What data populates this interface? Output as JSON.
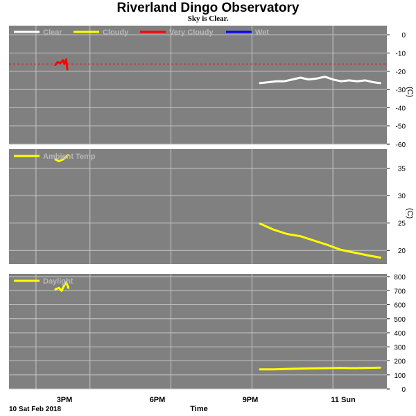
{
  "title": "Riverland Dingo Observatory",
  "subtitle": "Sky is Clear.",
  "date_label": "10 Sat Feb 2018",
  "x_axis_label": "Time",
  "x_ticks": [
    "3PM",
    "6PM",
    "9PM",
    "11 Sun"
  ],
  "colors": {
    "panel_bg": "#808080",
    "grid": "#c8c8c8",
    "clear": "#ffffff",
    "cloudy": "#ffff00",
    "very_cloudy": "#ff0000",
    "wet": "#0000ff",
    "threshold": "#ff0000"
  },
  "chart_data": [
    {
      "type": "line",
      "panel": "sky",
      "legend": [
        "Clear",
        "Cloudy",
        "Very Cloudy",
        "Wet"
      ],
      "unit": "(C)",
      "ylim": [
        -60,
        5
      ],
      "y_ticks": [
        "0",
        "-10",
        "-20",
        "-30",
        "-40",
        "-50",
        "-60"
      ],
      "threshold": -16,
      "series": [
        {
          "name": "Very Cloudy",
          "x": [
            13.72,
            13.8,
            13.9,
            14.0,
            14.05,
            14.12,
            14.16
          ],
          "y": [
            -16.5,
            -15.0,
            -15.5,
            -14.0,
            -16.0,
            -13.5,
            -19.0
          ]
        },
        {
          "name": "Clear",
          "x": [
            21.3,
            21.6,
            21.9,
            22.2,
            22.5,
            22.8,
            23.1,
            23.4,
            23.7,
            24.0,
            24.3,
            24.6,
            24.9,
            25.2,
            25.5,
            25.75
          ],
          "y": [
            -26.5,
            -26.0,
            -25.5,
            -25.5,
            -24.5,
            -23.5,
            -24.5,
            -24.0,
            -23.0,
            -24.5,
            -25.5,
            -25.0,
            -25.5,
            -25.0,
            -26.0,
            -26.5
          ]
        }
      ]
    },
    {
      "type": "line",
      "panel": "ambient",
      "legend": [
        "Ambient Temp"
      ],
      "unit": "(C)",
      "ylim": [
        17.5,
        38.5
      ],
      "y_ticks": [
        "35",
        "30",
        "25",
        "20"
      ],
      "series": [
        {
          "name": "Ambient Temp",
          "x": [
            13.72,
            13.85,
            14.0,
            14.1,
            14.18
          ],
          "y": [
            36.6,
            36.3,
            36.6,
            37.0,
            37.4
          ],
          "segment": 0
        },
        {
          "name": "Ambient Temp",
          "x": [
            21.3,
            21.8,
            22.3,
            22.8,
            23.3,
            23.8,
            24.3,
            24.8,
            25.3,
            25.75
          ],
          "y": [
            24.9,
            23.8,
            23.0,
            22.6,
            21.8,
            21.0,
            20.1,
            19.6,
            19.1,
            18.7
          ],
          "segment": 1
        }
      ]
    },
    {
      "type": "line",
      "panel": "daylight",
      "legend": [
        "Daylight"
      ],
      "unit": "",
      "ylim": [
        0,
        820
      ],
      "y_ticks": [
        "800",
        "700",
        "600",
        "500",
        "400",
        "300",
        "200",
        "100",
        "0"
      ],
      "series": [
        {
          "name": "Daylight",
          "x": [
            13.72,
            13.85,
            13.95,
            14.05,
            14.12,
            14.2
          ],
          "y": [
            710,
            720,
            700,
            740,
            760,
            720
          ],
          "segment": 0
        },
        {
          "name": "Daylight",
          "x": [
            21.3,
            21.8,
            22.3,
            22.8,
            23.3,
            23.8,
            24.3,
            24.8,
            25.3,
            25.75
          ],
          "y": [
            140,
            140,
            143,
            145,
            147,
            148,
            150,
            148,
            150,
            152
          ],
          "segment": 1
        }
      ]
    }
  ]
}
